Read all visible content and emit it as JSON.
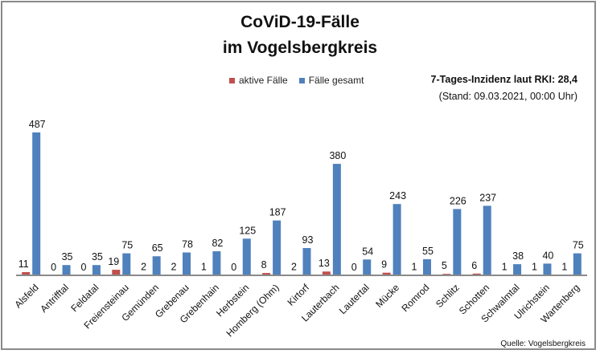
{
  "chart_data": {
    "type": "bar",
    "title": "CoViD-19-Fälle",
    "subtitle": "im Vogelsbergkreis",
    "categories": [
      "Alsfeld",
      "Antrifftal",
      "Feldatal",
      "Freiensteinau",
      "Gemünden",
      "Grebenau",
      "Grebenhain",
      "Herbstein",
      "Homberg (Ohm)",
      "Kirtorf",
      "Lauterbach",
      "Lautertal",
      "Mücke",
      "Romrod",
      "Schlitz",
      "Schotten",
      "Schwalmtal",
      "Ulrichstein",
      "Wartenberg"
    ],
    "series": [
      {
        "name": "aktive Fälle",
        "color": "#c0504d",
        "values": [
          11,
          0,
          0,
          19,
          2,
          2,
          1,
          0,
          8,
          2,
          13,
          0,
          9,
          1,
          5,
          6,
          1,
          1,
          1
        ]
      },
      {
        "name": "Fälle gesamt",
        "color": "#4f81bd",
        "values": [
          487,
          35,
          35,
          75,
          65,
          78,
          82,
          125,
          187,
          93,
          380,
          54,
          243,
          55,
          226,
          237,
          38,
          40,
          75
        ]
      }
    ],
    "ylim": [
      0,
      500
    ],
    "grid": false,
    "legend": "top-center",
    "annotations": {
      "incidence": "7-Tages-Inzidenz laut RKI: 28,4",
      "stand": "(Stand: 09.03.2021, 00:00 Uhr)",
      "source": "Quelle: Vogelsbergkreis"
    }
  }
}
